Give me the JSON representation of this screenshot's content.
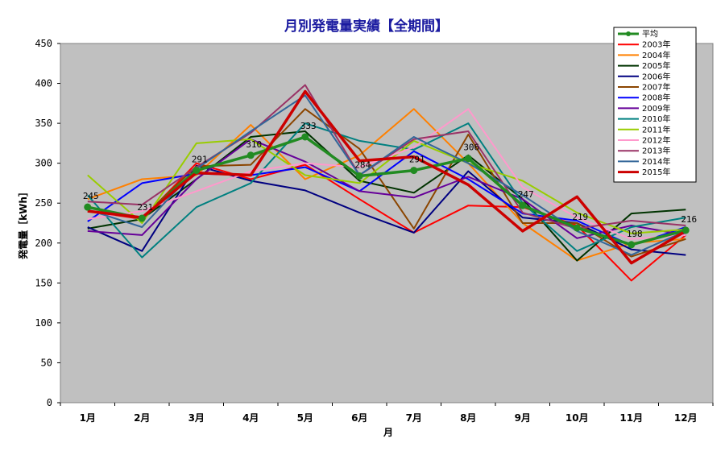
{
  "chart_data": {
    "type": "line",
    "title": "月別発電量実績【全期間】",
    "xlabel": "月",
    "ylabel": "発電量［kWh］",
    "categories": [
      "1月",
      "2月",
      "3月",
      "4月",
      "5月",
      "6月",
      "7月",
      "8月",
      "9月",
      "10月",
      "11月",
      "12月"
    ],
    "ylim": [
      0,
      450
    ],
    "yticks": [
      "0",
      "50",
      "100",
      "150",
      "200",
      "250",
      "300",
      "350",
      "400",
      "450"
    ],
    "grid": false,
    "legend_position": "top-right",
    "plot_background": "#c0c0c0",
    "series": [
      {
        "name": "平均",
        "color": "#228b22",
        "width": 3.5,
        "marker": true,
        "values": [
          245,
          231,
          291,
          310,
          333,
          284,
          291,
          306,
          247,
          219,
          198,
          216
        ]
      },
      {
        "name": "2003年",
        "color": "#ff0000",
        "width": 2,
        "values": [
          240,
          230,
          300,
          280,
          298,
          255,
          213,
          247,
          245,
          222,
          153,
          210
        ]
      },
      {
        "name": "2004年",
        "color": "#ff8000",
        "width": 2,
        "values": [
          255,
          280,
          285,
          348,
          280,
          310,
          368,
          300,
          225,
          178,
          200,
          205
        ]
      },
      {
        "name": "2005年",
        "color": "#003300",
        "width": 2,
        "values": [
          218,
          230,
          280,
          333,
          340,
          278,
          263,
          310,
          255,
          178,
          237,
          242
        ]
      },
      {
        "name": "2006年",
        "color": "#000080",
        "width": 2,
        "values": [
          220,
          190,
          297,
          278,
          266,
          238,
          213,
          290,
          232,
          225,
          192,
          185
        ]
      },
      {
        "name": "2007年",
        "color": "#8b4500",
        "width": 2,
        "values": [
          245,
          232,
          296,
          298,
          368,
          318,
          218,
          336,
          225,
          225,
          183,
          205
        ]
      },
      {
        "name": "2008年",
        "color": "#0000ff",
        "width": 2,
        "values": [
          227,
          275,
          287,
          285,
          295,
          265,
          315,
          280,
          237,
          228,
          197,
          220
        ]
      },
      {
        "name": "2009年",
        "color": "#660099",
        "width": 2,
        "values": [
          215,
          210,
          280,
          330,
          302,
          265,
          257,
          283,
          255,
          206,
          222,
          210
        ]
      },
      {
        "name": "2010年",
        "color": "#008080",
        "width": 2,
        "values": [
          260,
          182,
          245,
          275,
          350,
          328,
          317,
          350,
          250,
          190,
          220,
          232
        ]
      },
      {
        "name": "2011年",
        "color": "#99cc00",
        "width": 2,
        "values": [
          285,
          225,
          325,
          330,
          285,
          275,
          328,
          300,
          278,
          238,
          212,
          217
        ]
      },
      {
        "name": "2012年",
        "color": "#ff99cc",
        "width": 2,
        "values": [
          230,
          240,
          265,
          290,
          300,
          295,
          320,
          368,
          270,
          232,
          205,
          210
        ]
      },
      {
        "name": "2013年",
        "color": "#993366",
        "width": 2,
        "values": [
          252,
          248,
          295,
          338,
          398,
          285,
          330,
          340,
          238,
          218,
          228,
          222
        ]
      },
      {
        "name": "2014年",
        "color": "#336699",
        "width": 2,
        "values": [
          242,
          220,
          293,
          340,
          385,
          285,
          333,
          300,
          260,
          215,
          185,
          215
        ]
      },
      {
        "name": "2015年",
        "color": "#cc0000",
        "width": 3.5,
        "values": [
          240,
          232,
          288,
          285,
          390,
          303,
          308,
          273,
          215,
          258,
          175,
          215
        ]
      }
    ],
    "data_labels": {
      "series": "平均",
      "values": [
        "245",
        "231",
        "291",
        "310",
        "333",
        "284",
        "291",
        "306",
        "247",
        "219",
        "198",
        "216"
      ]
    }
  }
}
